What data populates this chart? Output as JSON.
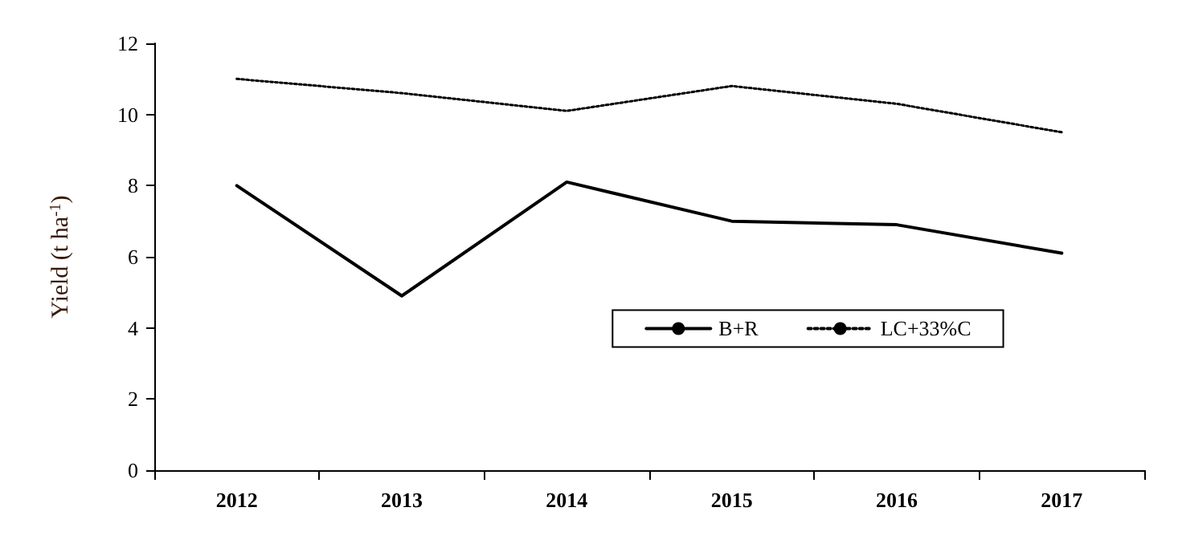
{
  "chart_data": {
    "type": "line",
    "ylabel": "Yield (t ha$^{-1}$)",
    "categories": [
      "2012",
      "2013",
      "2014",
      "2015",
      "2016",
      "2017"
    ],
    "series": [
      {
        "name": "B+R",
        "color": "#000000",
        "line_style": "solid",
        "values": [
          8.0,
          4.9,
          8.1,
          7.0,
          6.9,
          6.1
        ]
      },
      {
        "name": "LC+33%C",
        "color": "#000000",
        "line_style": "dotted",
        "values": [
          11.0,
          10.6,
          10.1,
          10.8,
          10.3,
          9.5
        ]
      }
    ],
    "ylim": [
      0,
      12
    ],
    "yticks": [
      0,
      2,
      4,
      6,
      8,
      10,
      12
    ],
    "grid": false,
    "legend": "center",
    "marker": "none"
  }
}
